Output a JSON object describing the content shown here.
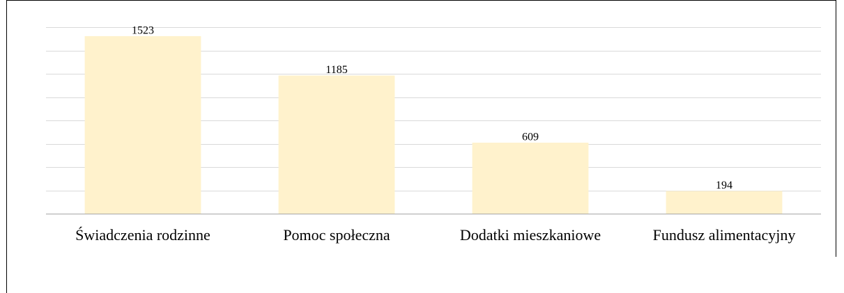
{
  "chart_data": {
    "type": "bar",
    "categories": [
      "Świadczenia rodzinne",
      "Pomoc społeczna",
      "Dodatki mieszkaniowe",
      "Fundusz alimentacyjny"
    ],
    "values": [
      1523,
      1185,
      609,
      194
    ],
    "color": "#fff2cc",
    "ylim": [
      0,
      1600
    ],
    "yticks": [
      0,
      200,
      400,
      600,
      800,
      1000,
      1200,
      1400,
      1600
    ],
    "grid": true
  }
}
